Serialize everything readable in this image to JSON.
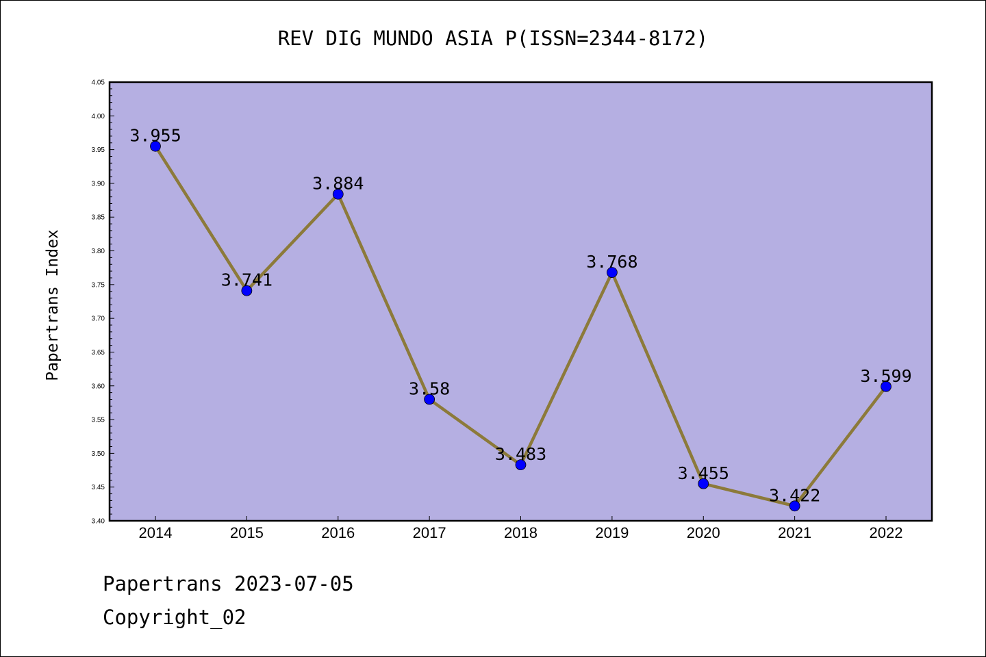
{
  "chart_data": {
    "type": "line",
    "title": "REV DIG MUNDO ASIA P(ISSN=2344-8172)",
    "ylabel": "Papertrans Index",
    "xlabel": "",
    "categories": [
      "2014",
      "2015",
      "2016",
      "2017",
      "2018",
      "2019",
      "2020",
      "2021",
      "2022"
    ],
    "values": [
      3.955,
      3.741,
      3.884,
      3.58,
      3.483,
      3.768,
      3.455,
      3.422,
      3.599
    ],
    "value_labels": [
      "3.955",
      "3.741",
      "3.884",
      "3.58",
      "3.483",
      "3.768",
      "3.455",
      "3.422",
      "3.599"
    ],
    "ylim": [
      3.4,
      4.05
    ],
    "yticks": [
      "3.40",
      "3.45",
      "3.50",
      "3.55",
      "3.60",
      "3.65",
      "3.70",
      "3.75",
      "3.80",
      "3.85",
      "3.90",
      "3.95",
      "4.00",
      "4.05"
    ],
    "grid": false,
    "colors": {
      "plot_background": "#b5afe2",
      "line": "#8c7a3a",
      "marker": "#0000ff"
    }
  },
  "footer": {
    "line1": "Papertrans 2023-07-05",
    "line2": "Copyright_02"
  }
}
